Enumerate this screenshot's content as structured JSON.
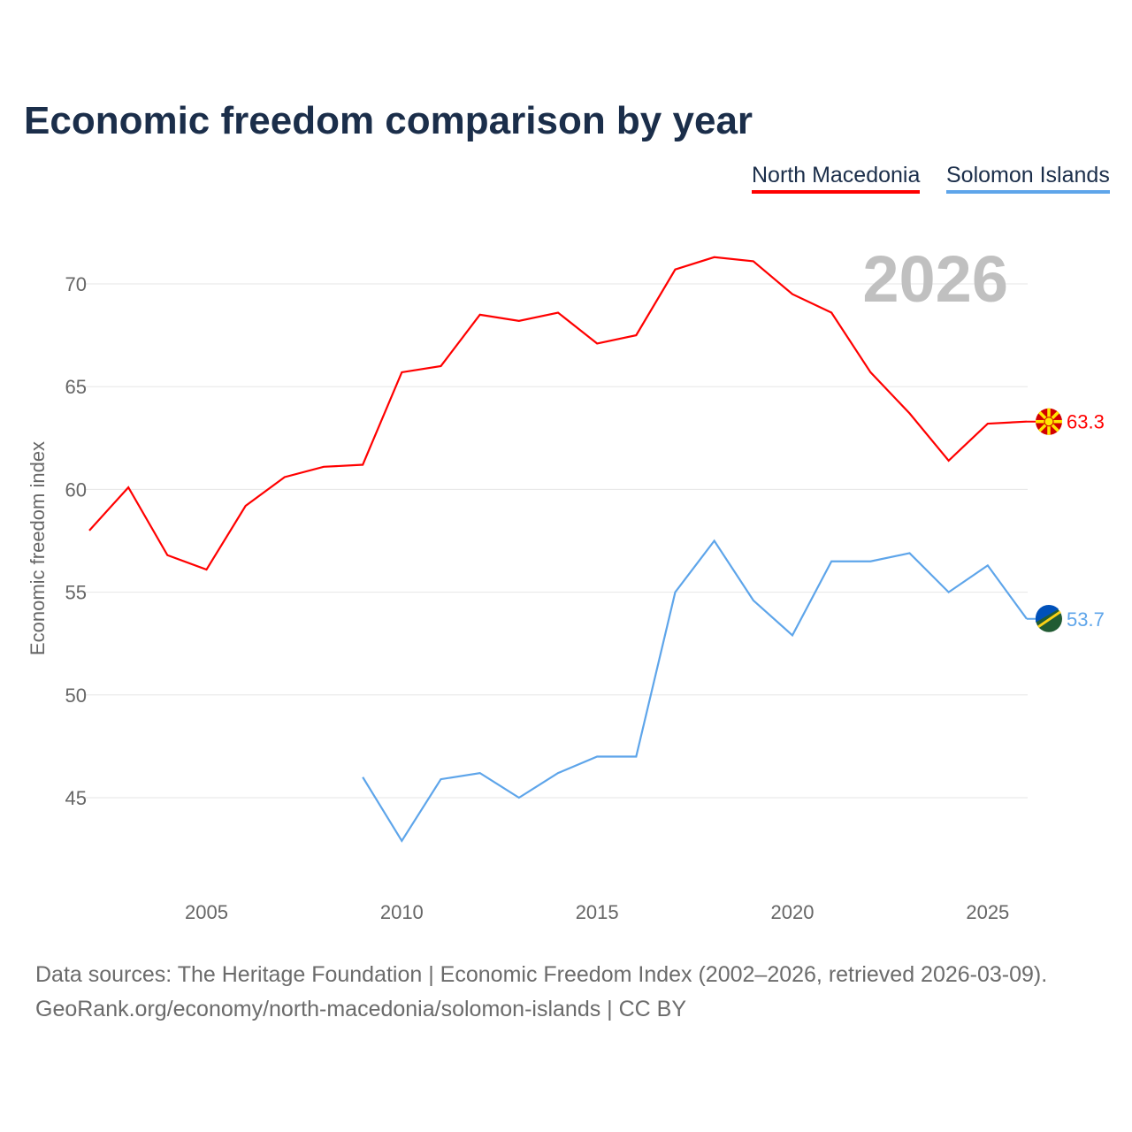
{
  "chart_data": {
    "type": "line",
    "title": "Economic freedom comparison by year",
    "xlabel": "",
    "ylabel": "Economic freedom index",
    "xlim": [
      2002,
      2026
    ],
    "ylim": [
      40.5,
      73.5
    ],
    "yticks": [
      45,
      50,
      55,
      60,
      65,
      70
    ],
    "xticks": [
      2005,
      2010,
      2015,
      2020,
      2025
    ],
    "grid": true,
    "legend_position": "top-right",
    "year_annotation": "2026",
    "series": [
      {
        "name": "North Macedonia",
        "color": "#ff0000",
        "end_label": "63.3",
        "x": [
          2002,
          2003,
          2004,
          2005,
          2006,
          2007,
          2008,
          2009,
          2010,
          2011,
          2012,
          2013,
          2014,
          2015,
          2016,
          2017,
          2018,
          2019,
          2020,
          2021,
          2022,
          2023,
          2024,
          2025,
          2026
        ],
        "values": [
          58.0,
          60.1,
          56.8,
          56.1,
          59.2,
          60.6,
          61.1,
          61.2,
          65.7,
          66.0,
          68.5,
          68.2,
          68.6,
          67.1,
          67.5,
          70.7,
          71.3,
          71.1,
          69.5,
          68.6,
          65.7,
          63.7,
          61.4,
          63.2,
          63.3
        ]
      },
      {
        "name": "Solomon Islands",
        "color": "#5ea5ea",
        "end_label": "53.7",
        "x": [
          2009,
          2010,
          2011,
          2012,
          2013,
          2014,
          2015,
          2016,
          2017,
          2018,
          2019,
          2020,
          2021,
          2022,
          2023,
          2024,
          2025,
          2026
        ],
        "values": [
          46.0,
          42.9,
          45.9,
          46.2,
          45.0,
          46.2,
          47.0,
          47.0,
          55.0,
          57.5,
          54.6,
          52.9,
          56.5,
          56.5,
          56.9,
          55.0,
          56.3,
          53.7
        ]
      }
    ]
  },
  "footer": {
    "line1": "Data sources: The Heritage Foundation | Economic Freedom Index (2002–2026, retrieved 2026-03-09).",
    "line2": "GeoRank.org/economy/north-macedonia/solomon-islands | CC BY"
  }
}
